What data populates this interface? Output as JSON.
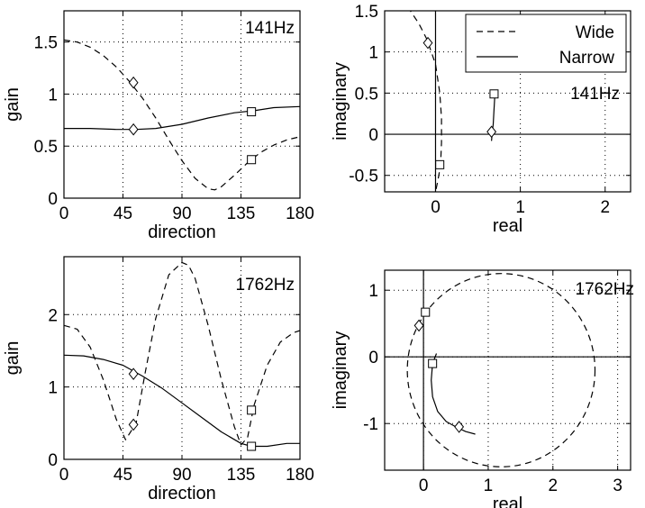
{
  "chart_data": [
    {
      "type": "line",
      "label": "141Hz",
      "xlabel": "direction",
      "ylabel": "gain",
      "xlim": [
        0,
        180
      ],
      "ylim": [
        0,
        1.8
      ],
      "xticks": [
        0,
        45,
        90,
        135,
        180
      ],
      "yticks": [
        0,
        0.5,
        1,
        1.5
      ],
      "ytick_labels": [
        "0",
        "0.5",
        "1",
        "1.5"
      ],
      "grid": true,
      "series": [
        {
          "name": "Wide",
          "style": "dashed",
          "x": [
            0,
            10,
            20,
            30,
            40,
            50,
            60,
            70,
            80,
            90,
            100,
            110,
            115,
            120,
            130,
            140,
            150,
            160,
            170,
            180
          ],
          "y": [
            1.52,
            1.5,
            1.45,
            1.37,
            1.26,
            1.12,
            0.96,
            0.77,
            0.56,
            0.36,
            0.19,
            0.09,
            0.08,
            0.11,
            0.22,
            0.34,
            0.44,
            0.51,
            0.56,
            0.59
          ]
        },
        {
          "name": "Narrow",
          "style": "solid",
          "x": [
            0,
            20,
            40,
            55,
            70,
            90,
            110,
            130,
            145,
            160,
            180
          ],
          "y": [
            0.67,
            0.67,
            0.66,
            0.66,
            0.67,
            0.71,
            0.77,
            0.82,
            0.84,
            0.87,
            0.88
          ]
        }
      ],
      "markers": [
        {
          "shape": "diamond",
          "x": [
            53,
            53
          ],
          "y": [
            1.11,
            0.66
          ]
        },
        {
          "shape": "square",
          "x": [
            143,
            143
          ],
          "y": [
            0.83,
            0.37
          ]
        }
      ]
    },
    {
      "type": "line",
      "label": "141Hz",
      "xlabel": "real",
      "ylabel": "imaginary",
      "xlim": [
        -0.6,
        2.3
      ],
      "ylim": [
        -0.7,
        1.5
      ],
      "xticks": [
        0,
        1,
        2
      ],
      "yticks": [
        -0.5,
        0,
        0.5,
        1,
        1.5
      ],
      "ytick_labels": [
        "-0.5",
        "0",
        "0.5",
        "1",
        "1.5"
      ],
      "grid": true,
      "zero_lines": true,
      "legend": {
        "position": "top-right",
        "entries": [
          "Wide",
          "Narrow"
        ]
      },
      "series": [
        {
          "name": "Wide",
          "style": "dashed",
          "x": [
            -0.33,
            -0.2,
            -0.1,
            0.0,
            0.05,
            0.07,
            0.07,
            0.06,
            0.03,
            0.0
          ],
          "y": [
            1.55,
            1.35,
            1.15,
            0.85,
            0.5,
            0.2,
            -0.1,
            -0.37,
            -0.55,
            -0.7
          ]
        },
        {
          "name": "Narrow",
          "style": "solid",
          "x": [
            0.7,
            0.69,
            0.68,
            0.67,
            0.66
          ],
          "y": [
            0.49,
            0.3,
            0.12,
            0.04,
            -0.08
          ]
        }
      ],
      "markers": [
        {
          "shape": "diamond",
          "x": [
            -0.09,
            0.66
          ],
          "y": [
            1.11,
            0.03
          ]
        },
        {
          "shape": "square",
          "x": [
            0.05,
            0.69
          ],
          "y": [
            -0.37,
            0.49
          ]
        }
      ]
    },
    {
      "type": "line",
      "label": "1762Hz",
      "xlabel": "direction",
      "ylabel": "gain",
      "xlim": [
        0,
        180
      ],
      "ylim": [
        0,
        2.8
      ],
      "xticks": [
        0,
        45,
        90,
        135,
        180
      ],
      "yticks": [
        0,
        1,
        2
      ],
      "ytick_labels": [
        "0",
        "1",
        "2"
      ],
      "grid": true,
      "series": [
        {
          "name": "Wide",
          "style": "dashed",
          "x": [
            0,
            10,
            20,
            30,
            40,
            47,
            55,
            62,
            70,
            80,
            90,
            95,
            100,
            110,
            120,
            130,
            135,
            140,
            145,
            155,
            165,
            175,
            180
          ],
          "y": [
            1.85,
            1.8,
            1.55,
            1.1,
            0.55,
            0.27,
            0.5,
            1.2,
            1.95,
            2.55,
            2.72,
            2.68,
            2.5,
            1.85,
            1.1,
            0.45,
            0.2,
            0.3,
            0.75,
            1.3,
            1.62,
            1.75,
            1.78
          ]
        },
        {
          "name": "Narrow",
          "style": "solid",
          "x": [
            0,
            15,
            30,
            45,
            60,
            75,
            90,
            105,
            120,
            135,
            143,
            155,
            170,
            180
          ],
          "y": [
            1.44,
            1.43,
            1.38,
            1.3,
            1.15,
            0.98,
            0.78,
            0.58,
            0.38,
            0.22,
            0.18,
            0.18,
            0.22,
            0.22
          ]
        }
      ],
      "markers": [
        {
          "shape": "diamond",
          "x": [
            53,
            53
          ],
          "y": [
            1.18,
            0.48
          ]
        },
        {
          "shape": "square",
          "x": [
            143,
            143
          ],
          "y": [
            0.68,
            0.18
          ]
        }
      ]
    },
    {
      "type": "line",
      "label": "1762Hz",
      "xlabel": "real",
      "ylabel": "imaginary",
      "xlim": [
        -0.6,
        3.2
      ],
      "ylim": [
        -1.7,
        1.3
      ],
      "xticks": [
        0,
        1,
        2,
        3
      ],
      "yticks": [
        -1,
        0,
        1
      ],
      "ytick_labels": [
        "-1",
        "0",
        "1"
      ],
      "grid": true,
      "zero_lines": true,
      "series": [
        {
          "name": "Wide",
          "style": "dashed",
          "shape": "circle",
          "center": [
            1.2,
            -0.2
          ],
          "radius": 1.45
        },
        {
          "name": "Narrow",
          "style": "solid",
          "x": [
            0.2,
            0.14,
            0.12,
            0.14,
            0.22,
            0.35,
            0.5,
            0.65,
            0.8
          ],
          "y": [
            0.05,
            -0.1,
            -0.35,
            -0.6,
            -0.82,
            -0.97,
            -1.05,
            -1.12,
            -1.16
          ]
        }
      ],
      "markers": [
        {
          "shape": "diamond",
          "x": [
            -0.07,
            0.55
          ],
          "y": [
            0.47,
            -1.05
          ]
        },
        {
          "shape": "square",
          "x": [
            0.03,
            0.14
          ],
          "y": [
            0.67,
            -0.1
          ]
        }
      ]
    }
  ]
}
